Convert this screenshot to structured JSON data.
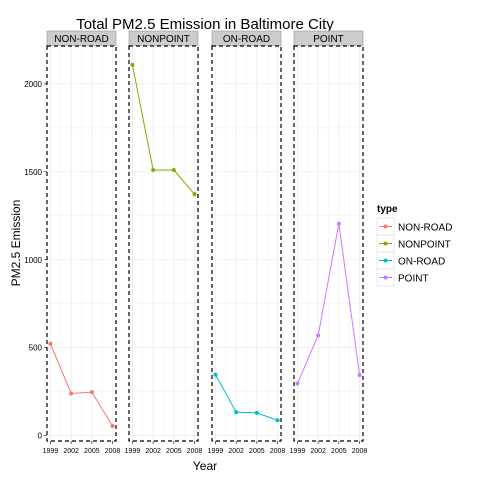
{
  "chart_data": {
    "type": "line",
    "title": "Total PM2.5 Emission in Baltimore City",
    "xlabel": "Year",
    "ylabel": "PM2.5 Emission",
    "x": [
      1999,
      2002,
      2005,
      2008
    ],
    "x_ticks": [
      "1999",
      "2002",
      "2005",
      "2008"
    ],
    "y_ticks": [
      0,
      500,
      1000,
      1500,
      2000
    ],
    "y_tick_labels": [
      "0",
      "500",
      "1000",
      "1500",
      "2000"
    ],
    "ylim": [
      -30,
      2215
    ],
    "xlim": [
      1998.5,
      2008.5
    ],
    "grid": true,
    "facet_by": "type",
    "legend": {
      "title": "type",
      "position": "right"
    },
    "series": [
      {
        "name": "NON-ROAD",
        "color": "#F8766D",
        "values": [
          523,
          240,
          248,
          55
        ]
      },
      {
        "name": "NONPOINT",
        "color": "#7CAE00",
        "values": [
          2108,
          1510,
          1510,
          1373
        ]
      },
      {
        "name": "ON-ROAD",
        "color": "#00BFC4",
        "values": [
          347,
          134,
          130,
          88
        ]
      },
      {
        "name": "POINT",
        "color": "#C77CFF",
        "values": [
          297,
          570,
          1205,
          345
        ]
      }
    ]
  }
}
